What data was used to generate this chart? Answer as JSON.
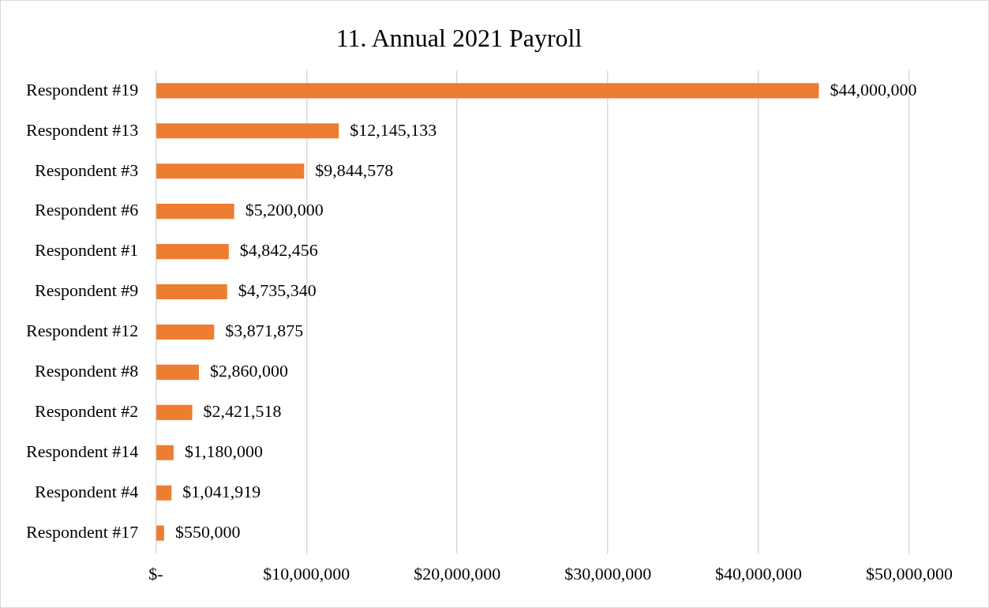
{
  "chart_data": {
    "type": "bar",
    "orientation": "horizontal",
    "title": "11. Annual 2021 Payroll",
    "categories": [
      "Respondent #19",
      "Respondent #13",
      "Respondent #3",
      "Respondent #6",
      "Respondent #1",
      "Respondent #9",
      "Respondent #12",
      "Respondent #8",
      "Respondent #2",
      "Respondent #14",
      "Respondent #4",
      "Respondent #17"
    ],
    "values": [
      44000000,
      12145133,
      9844578,
      5200000,
      4842456,
      4735340,
      3871875,
      2860000,
      2421518,
      1180000,
      1041919,
      550000
    ],
    "value_labels": [
      "$44,000,000",
      "$12,145,133",
      "$9,844,578",
      "$5,200,000",
      "$4,842,456",
      "$4,735,340",
      "$3,871,875",
      "$2,860,000",
      "$2,421,518",
      "$1,180,000",
      "$1,041,919",
      "$550,000"
    ],
    "color": "#ed7d31",
    "xlim": [
      0,
      50000000
    ],
    "xticks": [
      {
        "value": 0,
        "label": "$-"
      },
      {
        "value": 10000000,
        "label": "$10,000,000"
      },
      {
        "value": 20000000,
        "label": "$20,000,000"
      },
      {
        "value": 30000000,
        "label": "$30,000,000"
      },
      {
        "value": 40000000,
        "label": "$40,000,000"
      },
      {
        "value": 50000000,
        "label": "$50,000,000"
      }
    ],
    "grid": "x",
    "legend": false
  }
}
